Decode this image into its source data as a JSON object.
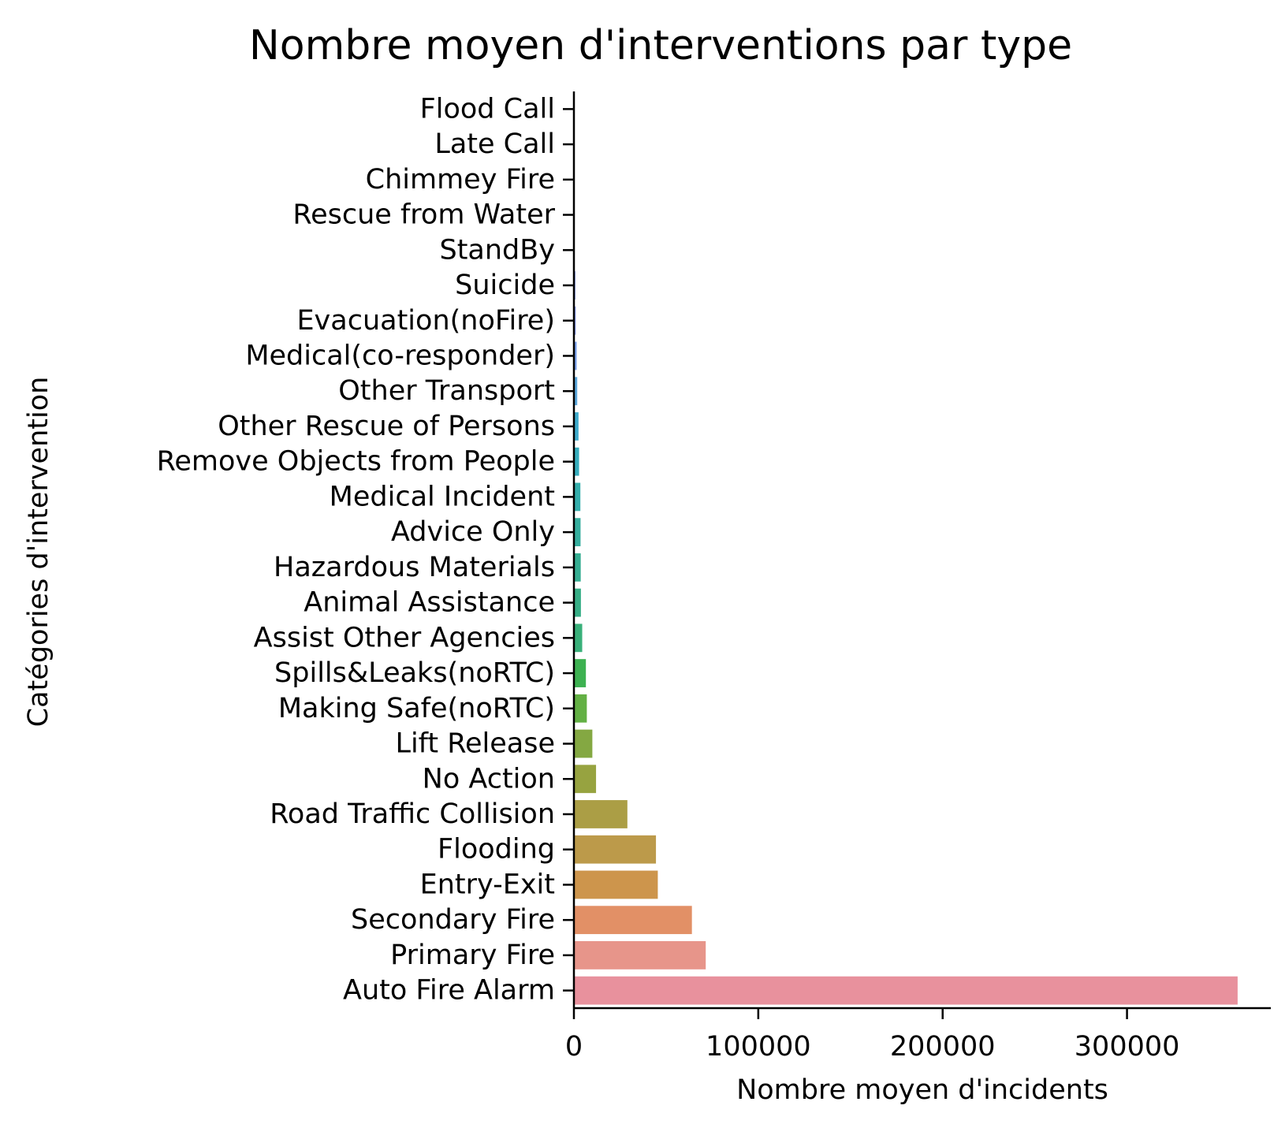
{
  "chart_data": {
    "type": "bar",
    "orientation": "horizontal",
    "title": "Nombre moyen d'interventions par type",
    "xlabel": "Nombre moyen d'incidents",
    "ylabel": "Catégories d'intervention",
    "xlim": [
      0,
      378000
    ],
    "xticks": [
      0,
      100000,
      200000,
      300000
    ],
    "xtick_labels": [
      "0",
      "100000",
      "200000",
      "300000"
    ],
    "grid": false,
    "categories": [
      "Flood Call",
      "Late Call",
      "Chimmey Fire",
      "Rescue from Water",
      "StandBy",
      "Suicide",
      "Evacuation(noFire)",
      "Medical(co-responder)",
      "Other Transport",
      "Other Rescue of Persons",
      "Remove Objects from People",
      "Medical Incident",
      "Advice Only",
      "Hazardous Materials",
      "Animal Assistance",
      "Assist Other Agencies",
      "Spills&Leaks(noRTC)",
      "Making Safe(noRTC)",
      "Lift Release",
      "No Action",
      "Road Traffic Collision",
      "Flooding",
      "Entry-Exit",
      "Secondary Fire",
      "Primary Fire",
      "Auto Fire Alarm"
    ],
    "values": [
      30,
      80,
      150,
      250,
      400,
      800,
      1000,
      1500,
      1800,
      2500,
      2800,
      3500,
      3600,
      3700,
      3800,
      4500,
      6500,
      7000,
      10000,
      12000,
      29000,
      44500,
      45500,
      64000,
      71500,
      360000
    ],
    "colors": [
      "#9d8ce6",
      "#a08be7",
      "#a48ae8",
      "#9b90e8",
      "#8f96e9",
      "#869ae8",
      "#8c9ded",
      "#7ba1ec",
      "#5ba7dc",
      "#3fabcc",
      "#36adbd",
      "#35aeac",
      "#36ae9e",
      "#36ae92",
      "#37ae86",
      "#39b07a",
      "#3db151",
      "#63b044",
      "#84a842",
      "#97a340",
      "#ab9e45",
      "#bc9a4a",
      "#cd954c",
      "#e29066",
      "#e7958a",
      "#e8919d"
    ]
  }
}
